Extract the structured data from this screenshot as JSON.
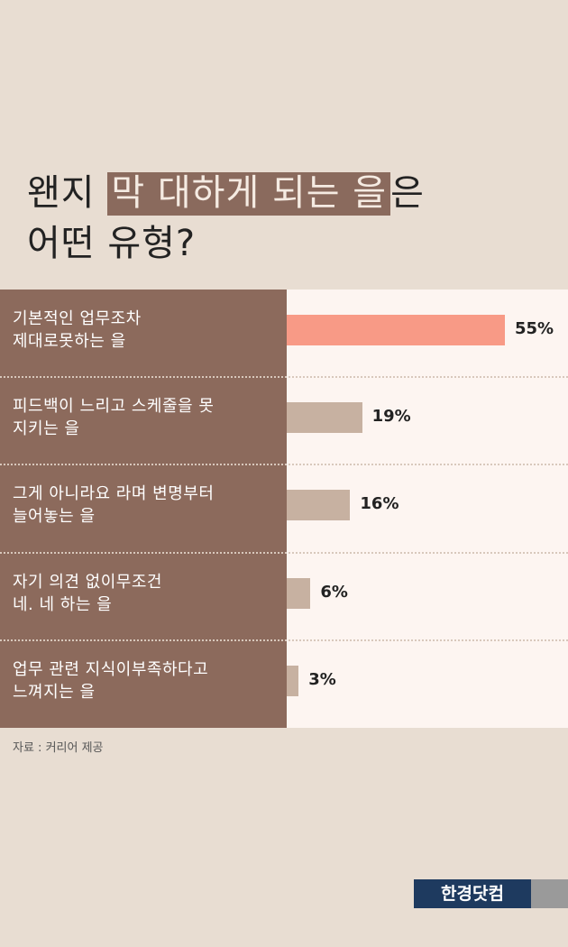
{
  "title": {
    "line1_before": "왠지 ",
    "line1_highlight": "막 대하게 되는 을",
    "line1_after": "은",
    "line2": "어떤 유형?"
  },
  "colors": {
    "highlight_bar": "#f89a86",
    "normal_bar": "#c7b1a1",
    "label_background": "#8c6a5c",
    "plot_background": "#fdf5f1"
  },
  "chart_data": {
    "type": "bar",
    "orientation": "horizontal",
    "unit": "%",
    "categories": [
      [
        "기본적인 업무조차",
        "제대로못하는 을"
      ],
      [
        "피드백이 느리고 스케줄을 못",
        "지키는 을"
      ],
      [
        "그게 아니라요 라며 변명부터",
        "늘어놓는 을"
      ],
      [
        "자기 의견 없이무조건",
        "네. 네 하는 을"
      ],
      [
        "업무 관련 지식이부족하다고",
        "느껴지는 을"
      ]
    ],
    "values": [
      55,
      19,
      16,
      6,
      3
    ],
    "value_labels": [
      "55%",
      "19%",
      "16%",
      "6%",
      "3%"
    ],
    "highlight_index": 0
  },
  "source": "자료 : 커리어 제공",
  "logo": "한경닷컴"
}
